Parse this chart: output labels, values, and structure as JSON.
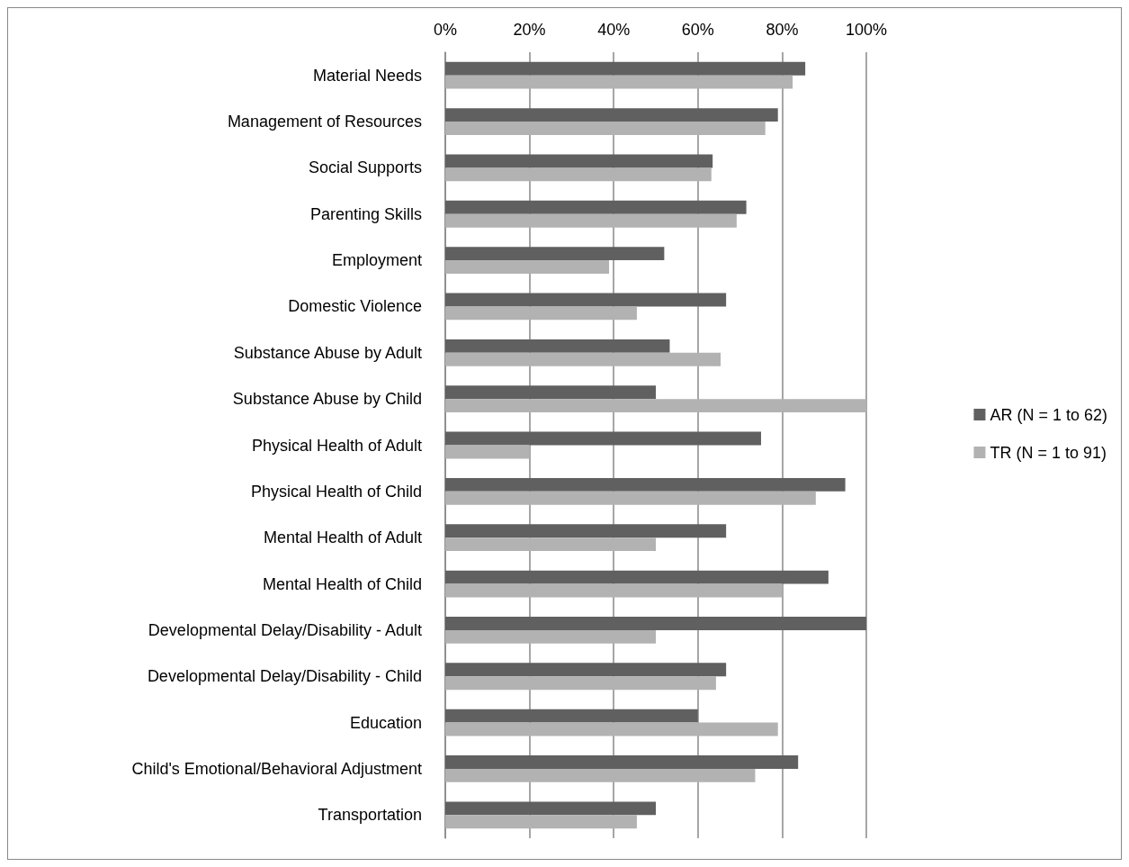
{
  "chart_data": {
    "type": "bar",
    "orientation": "horizontal",
    "categories": [
      "Material Needs",
      "Management of Resources",
      "Social Supports",
      "Parenting Skills",
      "Employment",
      "Domestic Violence",
      "Substance Abuse by Adult",
      "Substance Abuse by Child",
      "Physical Health of Adult",
      "Physical Health of Child",
      "Mental Health of Adult",
      "Mental Health of Child",
      "Developmental Delay/Disability - Adult",
      "Developmental Delay/Disability - Child",
      "Education",
      "Child's Emotional/Behavioral Adjustment",
      "Transportation"
    ],
    "series": [
      {
        "name": "AR (N = 1 to 62)",
        "color": "#606060",
        "values": [
          85.5,
          79,
          63.5,
          71.5,
          52,
          66.7,
          53.3,
          50,
          75,
          95,
          66.7,
          91,
          100,
          66.7,
          60,
          83.8,
          50
        ]
      },
      {
        "name": "TR (N = 1 to 91)",
        "color": "#b2b2b2",
        "values": [
          82.5,
          76,
          63.2,
          69.2,
          38.9,
          45.5,
          65.4,
          100,
          20,
          88,
          50,
          80,
          50,
          64.3,
          79,
          73.6,
          45.5
        ]
      }
    ],
    "xlim": [
      0,
      100
    ],
    "xticks": [
      {
        "value": 0,
        "label": "0%"
      },
      {
        "value": 20,
        "label": "20%"
      },
      {
        "value": 40,
        "label": "40%"
      },
      {
        "value": 60,
        "label": "60%"
      },
      {
        "value": 80,
        "label": "80%"
      },
      {
        "value": 100,
        "label": "100%"
      }
    ],
    "grid": "x",
    "legend": "right"
  }
}
